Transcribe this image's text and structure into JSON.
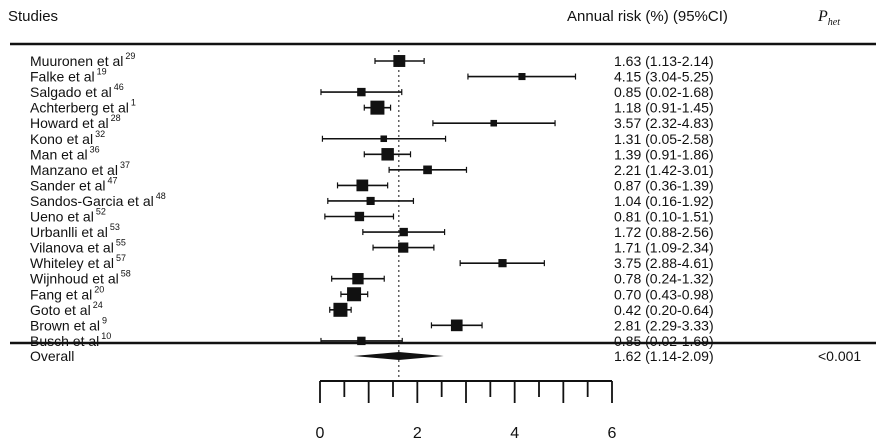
{
  "header": {
    "studies": "Studies",
    "annual_risk": "Annual risk (%) (95%CI)",
    "phet": "P",
    "phet_sub": "het"
  },
  "chart_data": {
    "type": "forest",
    "reference_value": 1.62,
    "xlim": [
      0,
      6
    ],
    "xticks": [
      0,
      2,
      4,
      6
    ],
    "studies": [
      {
        "name": "Muuronen et al",
        "ref": "29",
        "est": 1.63,
        "lo": 1.13,
        "hi": 2.14,
        "ci": "1.63 (1.13-2.14)"
      },
      {
        "name": "Falke et al",
        "ref": "19",
        "est": 4.15,
        "lo": 3.04,
        "hi": 5.25,
        "ci": "4.15 (3.04-5.25)"
      },
      {
        "name": "Salgado et al",
        "ref": "46",
        "est": 0.85,
        "lo": 0.02,
        "hi": 1.68,
        "ci": "0.85 (0.02-1.68)"
      },
      {
        "name": "Achterberg et al",
        "ref": "1",
        "est": 1.18,
        "lo": 0.91,
        "hi": 1.45,
        "ci": "1.18 (0.91-1.45)"
      },
      {
        "name": "Howard et al",
        "ref": "28",
        "est": 3.57,
        "lo": 2.32,
        "hi": 4.83,
        "ci": "3.57 (2.32-4.83)"
      },
      {
        "name": "Kono et al",
        "ref": "32",
        "est": 1.31,
        "lo": 0.05,
        "hi": 2.58,
        "ci": "1.31 (0.05-2.58)"
      },
      {
        "name": "Man et al",
        "ref": "36",
        "est": 1.39,
        "lo": 0.91,
        "hi": 1.86,
        "ci": "1.39 (0.91-1.86)"
      },
      {
        "name": "Manzano et al",
        "ref": "37",
        "est": 2.21,
        "lo": 1.42,
        "hi": 3.01,
        "ci": "2.21 (1.42-3.01)"
      },
      {
        "name": "Sander et al",
        "ref": "47",
        "est": 0.87,
        "lo": 0.36,
        "hi": 1.39,
        "ci": "0.87 (0.36-1.39)"
      },
      {
        "name": "Sandos-Garcia et al",
        "ref": "48",
        "est": 1.04,
        "lo": 0.16,
        "hi": 1.92,
        "ci": "1.04 (0.16-1.92)"
      },
      {
        "name": "Ueno et al",
        "ref": "52",
        "est": 0.81,
        "lo": 0.1,
        "hi": 1.51,
        "ci": "0.81 (0.10-1.51)"
      },
      {
        "name": "Urbanlli et al",
        "ref": "53",
        "est": 1.72,
        "lo": 0.88,
        "hi": 2.56,
        "ci": "1.72 (0.88-2.56)"
      },
      {
        "name": "Vilanova et al",
        "ref": "55",
        "est": 1.71,
        "lo": 1.09,
        "hi": 2.34,
        "ci": "1.71 (1.09-2.34)"
      },
      {
        "name": "Whiteley et al",
        "ref": "57",
        "est": 3.75,
        "lo": 2.88,
        "hi": 4.61,
        "ci": "3.75 (2.88-4.61)"
      },
      {
        "name": "Wijnhoud et al",
        "ref": "58",
        "est": 0.78,
        "lo": 0.24,
        "hi": 1.32,
        "ci": "0.78 (0.24-1.32)"
      },
      {
        "name": "Fang et al",
        "ref": "20",
        "est": 0.7,
        "lo": 0.43,
        "hi": 0.98,
        "ci": "0.70 (0.43-0.98)"
      },
      {
        "name": "Goto et al",
        "ref": "24",
        "est": 0.42,
        "lo": 0.2,
        "hi": 0.64,
        "ci": "0.42 (0.20-0.64)"
      },
      {
        "name": "Brown et al",
        "ref": "9",
        "est": 2.81,
        "lo": 2.29,
        "hi": 3.33,
        "ci": "2.81 (2.29-3.33)"
      },
      {
        "name": "Busch et al",
        "ref": "10",
        "est": 0.85,
        "lo": 0.02,
        "hi": 1.69,
        "ci": "0.85 (0.02-1.69)"
      }
    ],
    "overall": {
      "name": "Overall",
      "est": 1.62,
      "lo": 1.14,
      "hi": 2.09,
      "ci": "1.62 (1.14-2.09)",
      "phet": "<0.001"
    }
  }
}
